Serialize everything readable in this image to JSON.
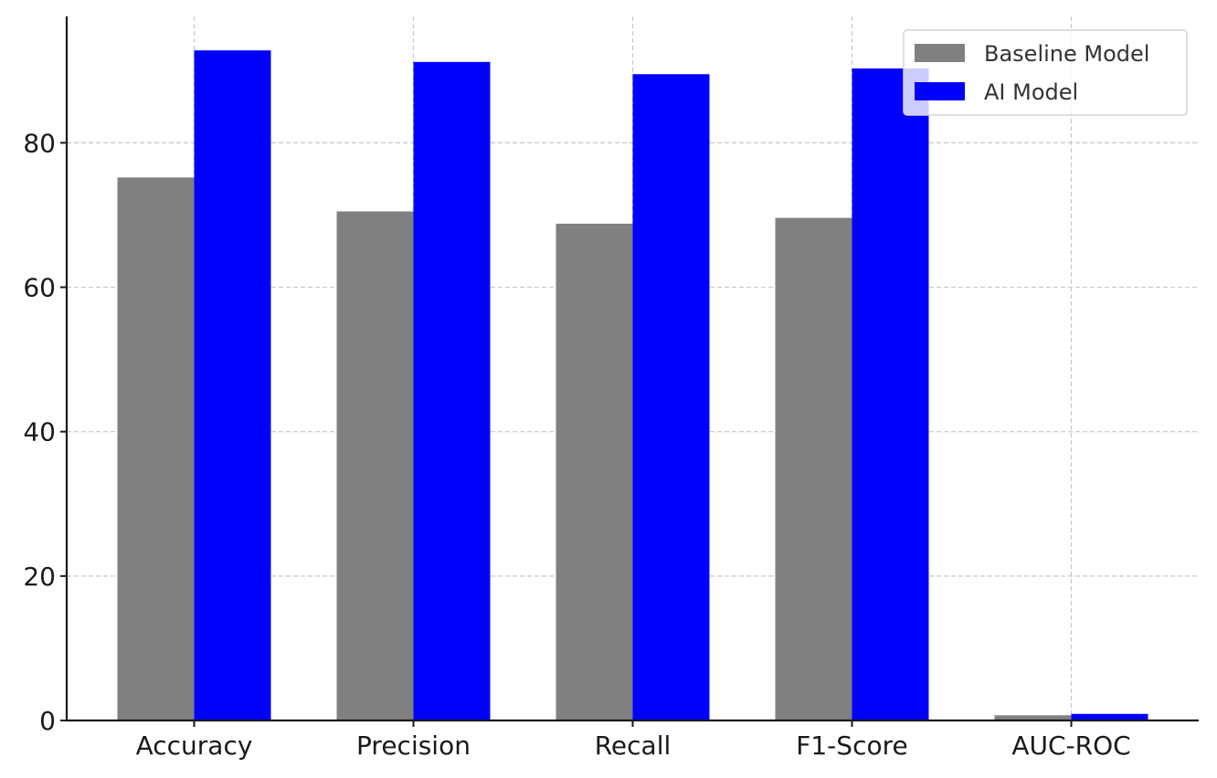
{
  "chart_data": {
    "type": "bar",
    "title": "",
    "xlabel": "",
    "ylabel": "",
    "categories": [
      "Accuracy",
      "Precision",
      "Recall",
      "F1-Score",
      "AUC-ROC"
    ],
    "series": [
      {
        "name": "Baseline Model",
        "values": [
          75.2,
          70.5,
          68.8,
          69.6,
          0.72
        ],
        "color": "#808080"
      },
      {
        "name": "AI Model",
        "values": [
          92.8,
          91.2,
          89.5,
          90.3,
          0.91
        ],
        "color": "#0000ff"
      }
    ],
    "ylim": [
      0,
      97.5
    ],
    "yticks": [
      "0",
      "20",
      "40",
      "60",
      "80"
    ],
    "grid": true,
    "legend_position": "top-right"
  }
}
